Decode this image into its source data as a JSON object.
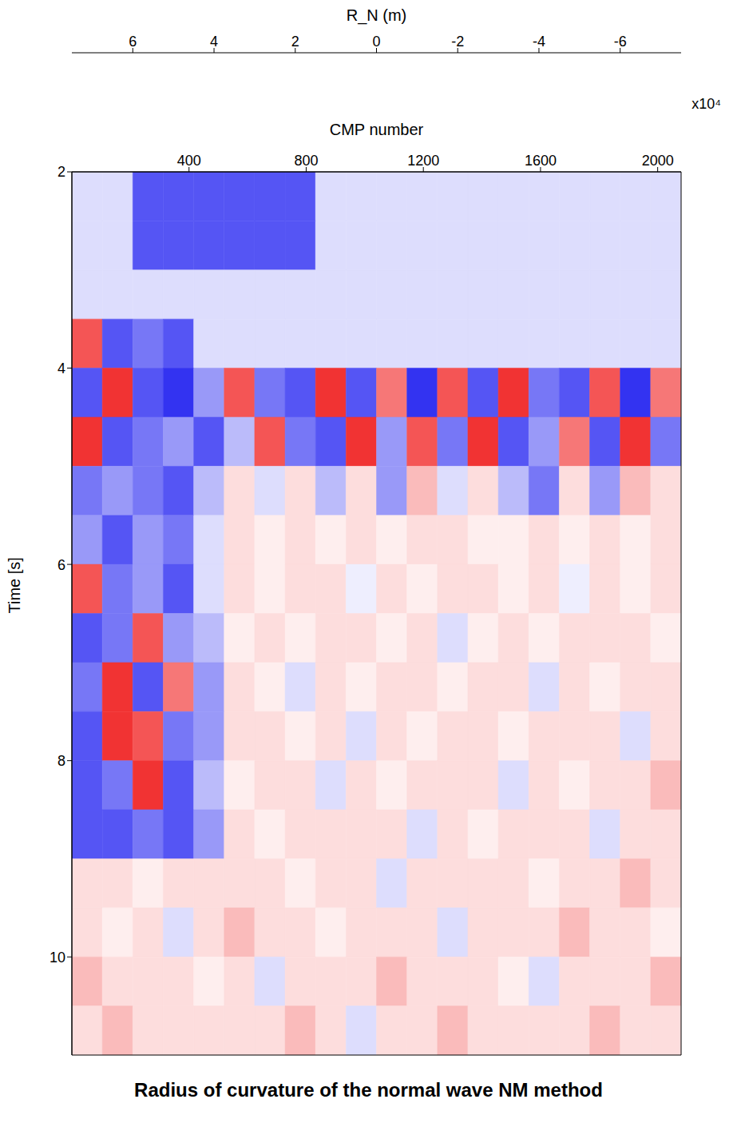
{
  "chart_data": {
    "type": "heatmap",
    "title": "Radius of curvature of the normal wave NM method",
    "x_label": "CMP number",
    "y_label": "Time [s]",
    "xlim": [
      0,
      2080
    ],
    "xticks": [
      400,
      800,
      1200,
      1600,
      2000
    ],
    "ylim": [
      2,
      11
    ],
    "yticks": [
      2,
      4,
      6,
      8,
      10
    ],
    "x_edges": [
      0,
      104,
      208,
      312,
      416,
      520,
      624,
      728,
      832,
      936,
      1040,
      1144,
      1248,
      1352,
      1456,
      1560,
      1664,
      1768,
      1872,
      1976,
      2080
    ],
    "y_edges": [
      2,
      2.5,
      3,
      3.5,
      4,
      4.5,
      5,
      5.5,
      6,
      6.5,
      7,
      7.5,
      8,
      8.5,
      9,
      9.5,
      10,
      10.5,
      11
    ],
    "cells": [
      [
        -1,
        -1,
        -5,
        -5,
        -5,
        -5,
        -5,
        -5,
        -1,
        -1,
        -1,
        -1,
        -1,
        -1,
        -1,
        -1,
        -1,
        -1,
        -1,
        -1
      ],
      [
        -1,
        -1,
        -5,
        -5,
        -5,
        -5,
        -5,
        -5,
        -1,
        -1,
        -1,
        -1,
        -1,
        -1,
        -1,
        -1,
        -1,
        -1,
        -1,
        -1
      ],
      [
        -1,
        -1,
        -1,
        -1,
        -1,
        -1,
        -1,
        -1,
        -1,
        -1,
        -1,
        -1,
        -1,
        -1,
        -1,
        -1,
        -1,
        -1,
        -1,
        -1
      ],
      [
        5,
        -5,
        -4,
        -5,
        -1,
        -1,
        -1,
        -1,
        -1,
        -1,
        -1,
        -1,
        -1,
        -1,
        -1,
        -1,
        -1,
        -1,
        -1,
        -1
      ],
      [
        -5,
        6,
        -5,
        -6,
        -3,
        5,
        -4,
        -5,
        6,
        -5,
        4,
        -6,
        5,
        -5,
        6,
        -4,
        -5,
        5,
        -6,
        4
      ],
      [
        6,
        -5,
        -4,
        -3,
        -5,
        -2,
        5,
        -4,
        -5,
        6,
        -3,
        5,
        -4,
        6,
        -5,
        -3,
        4,
        -5,
        6,
        -4
      ],
      [
        -4,
        -3,
        -4,
        -5,
        -2,
        1,
        -1,
        1,
        -2,
        1,
        -3,
        2,
        -1,
        1,
        -2,
        -4,
        1,
        -3,
        2,
        1
      ],
      [
        -3,
        -5,
        -3,
        -4,
        -1,
        1,
        0.5,
        1,
        0.5,
        1,
        0.5,
        1,
        1,
        0.5,
        0.5,
        1,
        0.5,
        1,
        0.5,
        1
      ],
      [
        5,
        -4,
        -3,
        -5,
        -1,
        1,
        0.5,
        1,
        1,
        -0.5,
        1,
        0.5,
        1,
        1,
        0.5,
        1,
        -0.5,
        1,
        0.5,
        1
      ],
      [
        -5,
        -4,
        5,
        -3,
        -2,
        0.5,
        1,
        0.5,
        1,
        1,
        0.5,
        1,
        -1,
        0.5,
        1,
        0.5,
        1,
        1,
        1,
        0.5
      ],
      [
        -4,
        6,
        -5,
        4,
        -3,
        1,
        0.5,
        -1,
        1,
        0.5,
        1,
        1,
        0.5,
        1,
        1,
        -1,
        1,
        0.5,
        1,
        1
      ],
      [
        -5,
        6,
        5,
        -4,
        -3,
        1,
        1,
        0.5,
        1,
        -1,
        1,
        0.5,
        1,
        1,
        0.5,
        1,
        1,
        1,
        -1,
        1
      ],
      [
        -5,
        -4,
        6,
        -5,
        -2,
        0.5,
        1,
        1,
        -1,
        1,
        0.5,
        1,
        1,
        1,
        -1,
        1,
        0.5,
        1,
        1,
        2
      ],
      [
        -5,
        -5,
        -4,
        -5,
        -3,
        1,
        0.5,
        1,
        1,
        1,
        1,
        -1,
        1,
        0.5,
        1,
        1,
        1,
        -1,
        1,
        1
      ],
      [
        1,
        1,
        0.5,
        1,
        1,
        1,
        1,
        0.5,
        1,
        1,
        -1,
        1,
        1,
        1,
        1,
        0.5,
        1,
        1,
        2,
        1
      ],
      [
        1,
        0.5,
        1,
        -1,
        1,
        2,
        1,
        1,
        0.5,
        1,
        1,
        1,
        -1,
        1,
        1,
        1,
        2,
        1,
        1,
        0.5
      ],
      [
        2,
        1,
        1,
        1,
        0.5,
        1,
        -1,
        1,
        1,
        1,
        2,
        1,
        1,
        1,
        0.5,
        -1,
        1,
        1,
        1,
        2
      ],
      [
        1,
        2,
        1,
        1,
        1,
        1,
        1,
        2,
        1,
        -1,
        1,
        1,
        2,
        1,
        1,
        1,
        1,
        2,
        1,
        1
      ]
    ],
    "colorbar": {
      "label": "R_N (m)",
      "range": [
        -7.5,
        7.5
      ],
      "ticks": [
        -6,
        -4,
        -2,
        0,
        2,
        4,
        6
      ],
      "multiplier": "x10⁴"
    },
    "colors": [
      "#0000ee",
      "#ffffff",
      "#ee0000"
    ]
  }
}
